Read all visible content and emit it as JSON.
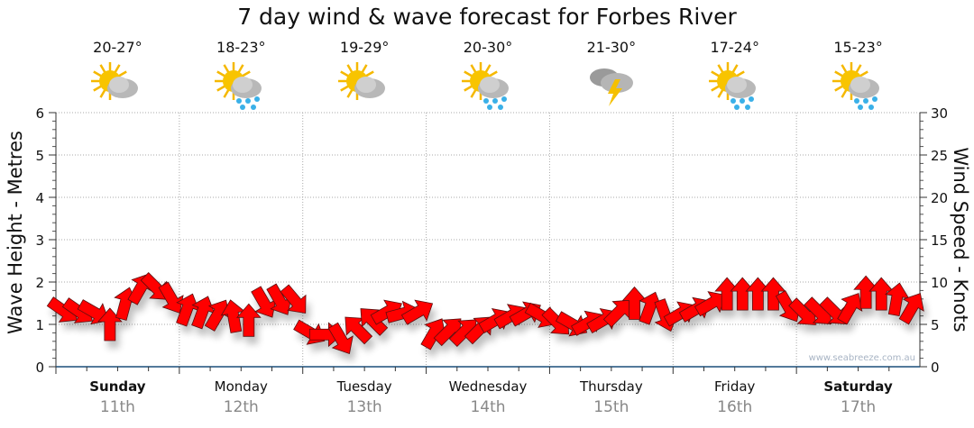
{
  "title": "7 day wind & wave forecast for Forbes River",
  "days": [
    {
      "name": "Sunday",
      "date": "11th",
      "temp": "20-27°",
      "icon": "sun-cloud-icon",
      "bold": true
    },
    {
      "name": "Monday",
      "date": "12th",
      "temp": "18-23°",
      "icon": "sun-cloud-rain-icon",
      "bold": false
    },
    {
      "name": "Tuesday",
      "date": "13th",
      "temp": "19-29°",
      "icon": "sun-cloud-icon",
      "bold": false
    },
    {
      "name": "Wednesday",
      "date": "14th",
      "temp": "20-30°",
      "icon": "sun-cloud-rain-icon",
      "bold": false
    },
    {
      "name": "Thursday",
      "date": "15th",
      "temp": "21-30°",
      "icon": "storm-icon",
      "bold": false
    },
    {
      "name": "Friday",
      "date": "16th",
      "temp": "17-24°",
      "icon": "sun-cloud-rain-icon",
      "bold": false
    },
    {
      "name": "Saturday",
      "date": "17th",
      "temp": "15-23°",
      "icon": "sun-cloud-rain-icon",
      "bold": true
    }
  ],
  "watermark": "www.seabreeze.com.au",
  "colors": {
    "arrow": "#ff0000",
    "arrow_stroke": "#5a1010",
    "axis": "#1a4f7a"
  },
  "chart_data": {
    "type": "scatter",
    "title": "7 day wind & wave forecast for Forbes River",
    "ylabel": "Wave Height - Metres",
    "y2label": "Wind Speed - Knots",
    "ylim": [
      0,
      6
    ],
    "y2lim": [
      0,
      30
    ],
    "yticks": [
      "0",
      "1",
      "2",
      "3",
      "4",
      "5",
      "6"
    ],
    "y2ticks": [
      "0",
      "5",
      "10",
      "15",
      "20",
      "25",
      "30"
    ],
    "grid": true,
    "interval_hours": 3,
    "wind_knots": [
      6.6,
      6.5,
      6.4,
      5.0,
      7.5,
      9.3,
      9.3,
      8.0,
      6.8,
      6.5,
      6.2,
      6.0,
      5.5,
      7.5,
      7.8,
      7.8,
      4.0,
      3.8,
      3.2,
      4.5,
      5.5,
      6.5,
      6.3,
      6.5,
      4.0,
      4.3,
      4.2,
      4.5,
      5.5,
      6.0,
      6.3,
      6.0,
      5.2,
      5.0,
      5.2,
      5.5,
      6.5,
      7.5,
      7.0,
      6.0,
      6.3,
      6.8,
      7.5,
      8.6,
      8.6,
      8.6,
      8.6,
      7.0,
      6.3,
      6.4,
      6.4,
      7.0,
      8.8,
      8.6,
      8.0,
      7.0
    ],
    "wind_arrow_heading_deg": [
      125,
      125,
      120,
      0,
      15,
      30,
      135,
      150,
      20,
      20,
      30,
      350,
      0,
      150,
      150,
      140,
      120,
      90,
      150,
      315,
      315,
      60,
      75,
      60,
      30,
      45,
      45,
      45,
      60,
      60,
      60,
      120,
      135,
      120,
      60,
      60,
      45,
      0,
      20,
      160,
      60,
      60,
      60,
      0,
      0,
      0,
      0,
      150,
      135,
      135,
      135,
      30,
      0,
      0,
      10,
      30
    ]
  }
}
